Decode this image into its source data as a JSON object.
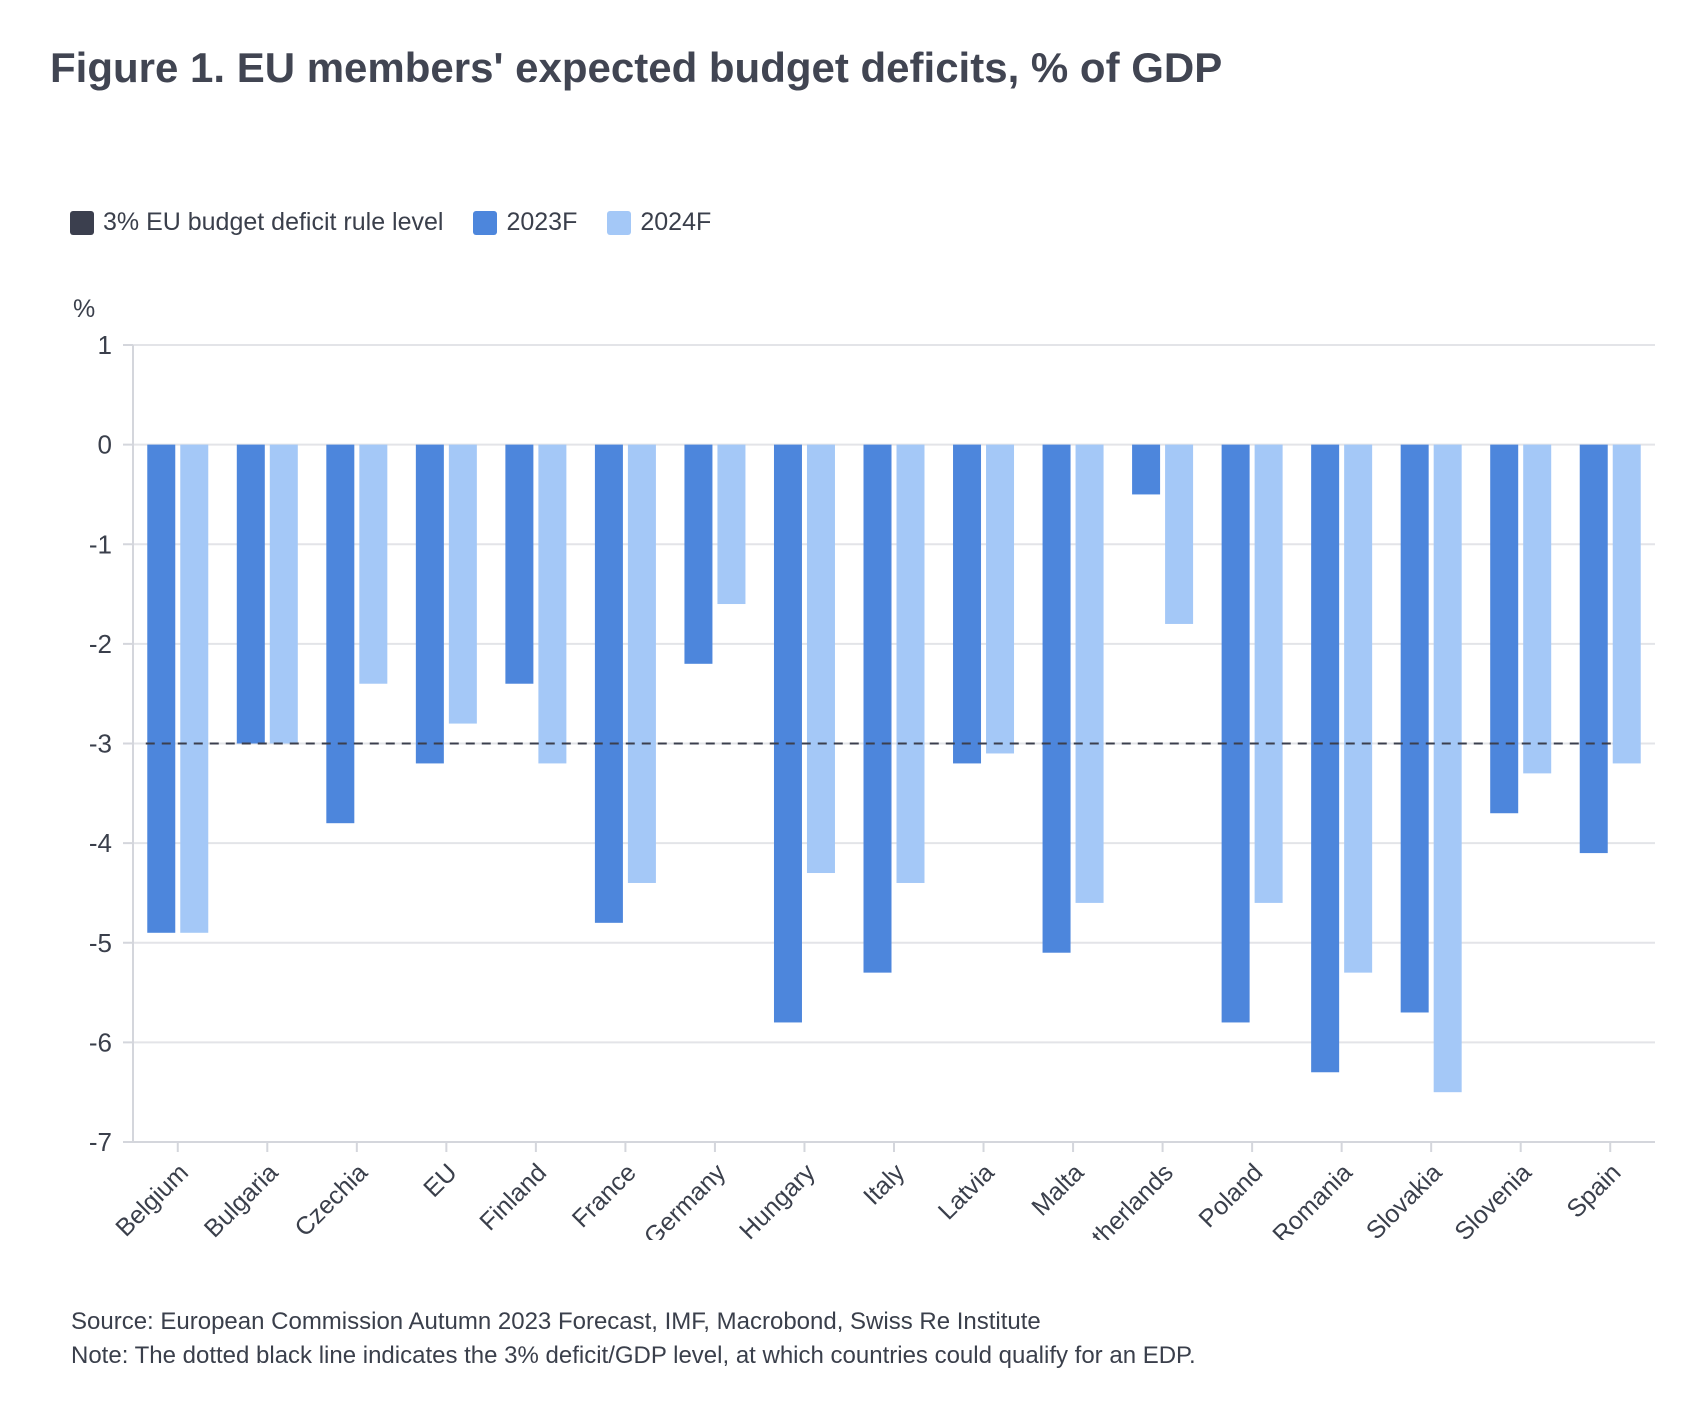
{
  "title": "Figure 1. EU members' expected budget deficits, % of GDP",
  "legend": {
    "rule": {
      "label": "3% EU budget deficit rule level",
      "color": "#3b3f4e"
    },
    "s2023": {
      "label": "2023F",
      "color": "#4d86dc"
    },
    "s2024": {
      "label": "2024F",
      "color": "#a4c8f7"
    }
  },
  "footer": {
    "source": "Source: European Commission Autumn 2023 Forecast, IMF, Macrobond, Swiss Re Institute",
    "note": "Note: The dotted black line indicates the 3% deficit/GDP level, at which countries could qualify for an EDP."
  },
  "chart_data": {
    "type": "bar",
    "title": "Figure 1. EU members' expected budget deficits, % of GDP",
    "xlabel": "",
    "ylabel": "%",
    "ylim": [
      -7,
      1
    ],
    "yticks": [
      1,
      0,
      -1,
      -2,
      -3,
      -4,
      -5,
      -6,
      -7
    ],
    "grid": true,
    "legend_position": "top-left",
    "categories": [
      "Belgium",
      "Bulgaria",
      "Czechia",
      "EU",
      "Finland",
      "France",
      "Germany",
      "Hungary",
      "Italy",
      "Latvia",
      "Malta",
      "Netherlands",
      "Poland",
      "Romania",
      "Slovakia",
      "Slovenia",
      "Spain"
    ],
    "series": [
      {
        "name": "2023F",
        "color": "#4d86dc",
        "values": [
          -4.9,
          -3.0,
          -3.8,
          -3.2,
          -2.4,
          -4.8,
          -2.2,
          -5.8,
          -5.3,
          -3.2,
          -5.1,
          -0.5,
          -5.8,
          -6.3,
          -5.7,
          -3.7,
          -4.1
        ]
      },
      {
        "name": "2024F",
        "color": "#a4c8f7",
        "values": [
          -4.9,
          -3.0,
          -2.4,
          -2.8,
          -3.2,
          -4.4,
          -1.6,
          -4.3,
          -4.4,
          -3.1,
          -4.6,
          -1.8,
          -4.6,
          -5.3,
          -6.5,
          -3.3,
          -3.2
        ]
      }
    ],
    "reference_line": {
      "name": "3% EU budget deficit rule level",
      "value": -3,
      "style": "dashed",
      "color": "#3b3f4e"
    }
  }
}
